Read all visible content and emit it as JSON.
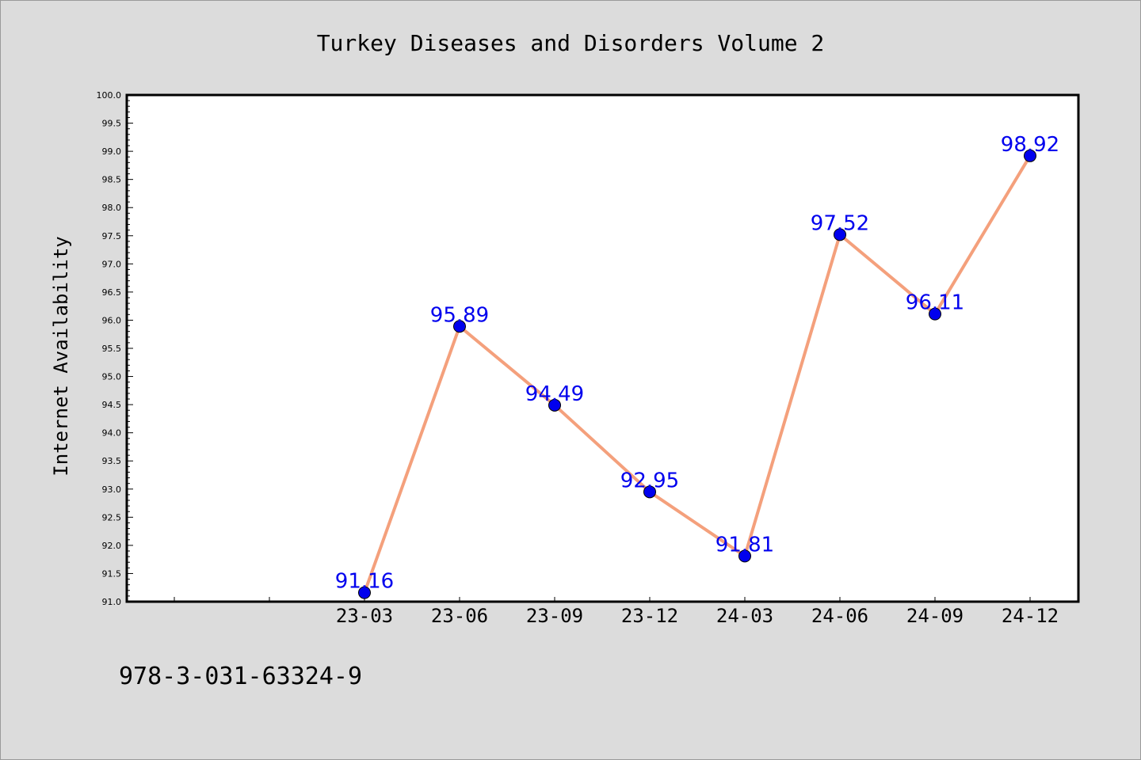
{
  "chart_data": {
    "type": "line",
    "title": "Turkey Diseases and Disorders Volume 2",
    "xlabel": "",
    "ylabel": "Internet Availability",
    "categories": [
      "23-03",
      "23-06",
      "23-09",
      "23-12",
      "24-03",
      "24-06",
      "24-09",
      "24-12"
    ],
    "values": [
      91.16,
      95.89,
      94.49,
      92.95,
      91.81,
      97.52,
      96.11,
      98.92
    ],
    "data_labels": [
      "91.16",
      "95.89",
      "94.49",
      "92.95",
      "91.81",
      "97.52",
      "96.11",
      "98.92"
    ],
    "ylim": [
      91.0,
      100.0
    ],
    "yticks": [
      "91.0",
      "91.5",
      "92.0",
      "92.5",
      "93.0",
      "93.5",
      "94.0",
      "94.5",
      "95.0",
      "95.5",
      "96.0",
      "96.5",
      "97.0",
      "97.5",
      "98.0",
      "98.5",
      "99.0",
      "99.5",
      "100.0"
    ],
    "grid": false,
    "legend": "none",
    "colors": {
      "line": "#f4a07c",
      "marker": "#0000ee",
      "label": "#0000ee",
      "plot_bg": "#ffffff",
      "page_bg": "#dcdcdc"
    }
  },
  "annotation": "978-3-031-63324-9"
}
